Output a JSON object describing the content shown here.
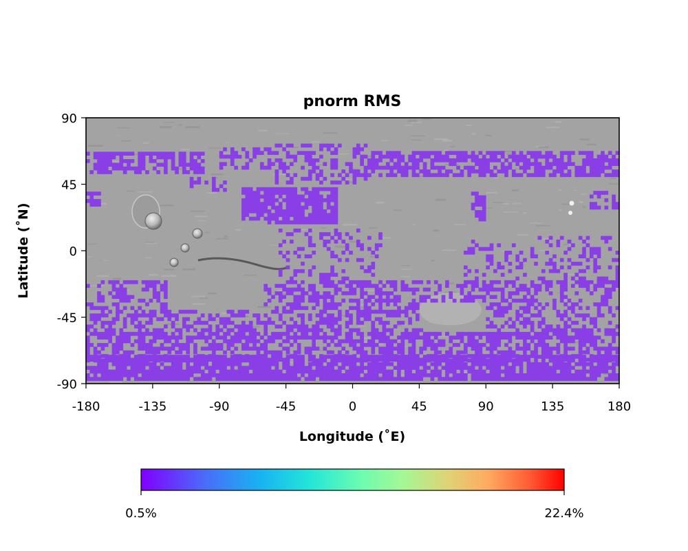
{
  "chart_data": {
    "type": "heatmap",
    "title": "pnorm RMS",
    "xlabel": "Longitude (˚E)",
    "ylabel": "Latitude (˚N)",
    "xlim": [
      -180,
      180
    ],
    "ylim": [
      -90,
      90
    ],
    "x_ticks": [
      "-180",
      "-135",
      "-90",
      "-45",
      "0",
      "45",
      "90",
      "135",
      "180"
    ],
    "y_ticks": [
      "90",
      "45",
      "0",
      "-45",
      "-90"
    ],
    "basemap": "grayscale shaded-relief topography",
    "colormap": "rainbow",
    "colorbar": {
      "min_label": "0.5%",
      "max_label": "22.4%",
      "orientation": "horizontal",
      "placement": "bottom"
    },
    "data_color": "#8a3fe6",
    "regions": [
      {
        "lon": [
          -180,
          -100
        ],
        "lat": [
          52,
          66
        ],
        "density": 0.7
      },
      {
        "lon": [
          -180,
          -170
        ],
        "lat": [
          30,
          42
        ],
        "density": 0.6
      },
      {
        "lon": [
          -110,
          -85
        ],
        "lat": [
          40,
          48
        ],
        "density": 0.3
      },
      {
        "lon": [
          -90,
          -55
        ],
        "lat": [
          55,
          70
        ],
        "density": 0.45
      },
      {
        "lon": [
          -75,
          -10
        ],
        "lat": [
          18,
          42
        ],
        "density": 0.85
      },
      {
        "lon": [
          -55,
          10
        ],
        "lat": [
          45,
          72
        ],
        "density": 0.4
      },
      {
        "lon": [
          10,
          180
        ],
        "lat": [
          50,
          66
        ],
        "density": 0.75
      },
      {
        "lon": [
          80,
          120
        ],
        "lat": [
          20,
          38
        ],
        "density": 0.6
      },
      {
        "lon": [
          160,
          180
        ],
        "lat": [
          28,
          40
        ],
        "density": 0.6
      },
      {
        "lon": [
          -50,
          20
        ],
        "lat": [
          -45,
          15
        ],
        "density": 0.25
      },
      {
        "lon": [
          75,
          180
        ],
        "lat": [
          -25,
          10
        ],
        "density": 0.25
      },
      {
        "lon": [
          -180,
          180
        ],
        "lat": [
          -60,
          -20
        ],
        "density": 0.45
      },
      {
        "lon": [
          -180,
          180
        ],
        "lat": [
          -75,
          -55
        ],
        "density": 0.55
      },
      {
        "lon": [
          -180,
          180
        ],
        "lat": [
          -88,
          -72
        ],
        "density": 0.85
      }
    ],
    "gaps": [
      {
        "lon": [
          -125,
          -60
        ],
        "lat": [
          -40,
          20
        ]
      },
      {
        "lon": [
          47,
          90
        ],
        "lat": [
          -55,
          -35
        ]
      },
      {
        "lon": [
          88,
          125
        ],
        "lat": [
          5,
          48
        ]
      },
      {
        "lon": [
          -180,
          -165
        ],
        "lat": [
          44,
          51
        ]
      }
    ]
  }
}
